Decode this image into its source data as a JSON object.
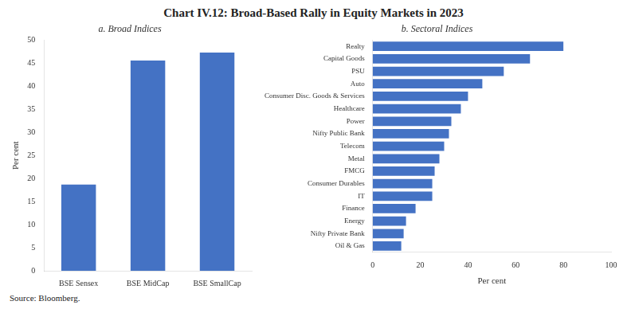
{
  "title": "Chart IV.12: Broad-Based Rally in Equity Markets in 2023",
  "source": "Source: Bloomberg.",
  "chart_data": [
    {
      "type": "bar",
      "title": "a. Broad Indices",
      "categories": [
        "BSE Sensex",
        "BSE MidCap",
        "BSE SmallCap"
      ],
      "values": [
        18.7,
        45.6,
        47.3
      ],
      "color": "#4472C4",
      "ylabel": "Per cent",
      "ylim": [
        0,
        50
      ],
      "yticks": [
        0,
        5,
        10,
        15,
        20,
        25,
        30,
        35,
        40,
        45,
        50
      ],
      "grid": false
    },
    {
      "type": "bar",
      "orientation": "horizontal",
      "title": "b. Sectoral Indices",
      "categories": [
        "Realty",
        "Capital Goods",
        "PSU",
        "Auto",
        "Consumer Disc. Goods & Services",
        "Healthcare",
        "Power",
        "Nifty Public Bank",
        "Telecom",
        "Metal",
        "FMCG",
        "Consumer Durables",
        "IT",
        "Finance",
        "Energy",
        "Nifty Private Bank",
        "Oil & Gas"
      ],
      "values": [
        80,
        66,
        55,
        46,
        40,
        37,
        33,
        32,
        30,
        28,
        26,
        25,
        25,
        18,
        14,
        13,
        12
      ],
      "color": "#4472C4",
      "xlabel": "Per cent",
      "xlim": [
        0,
        100
      ],
      "xticks": [
        0,
        20,
        40,
        60,
        80,
        100
      ],
      "grid": false
    }
  ]
}
